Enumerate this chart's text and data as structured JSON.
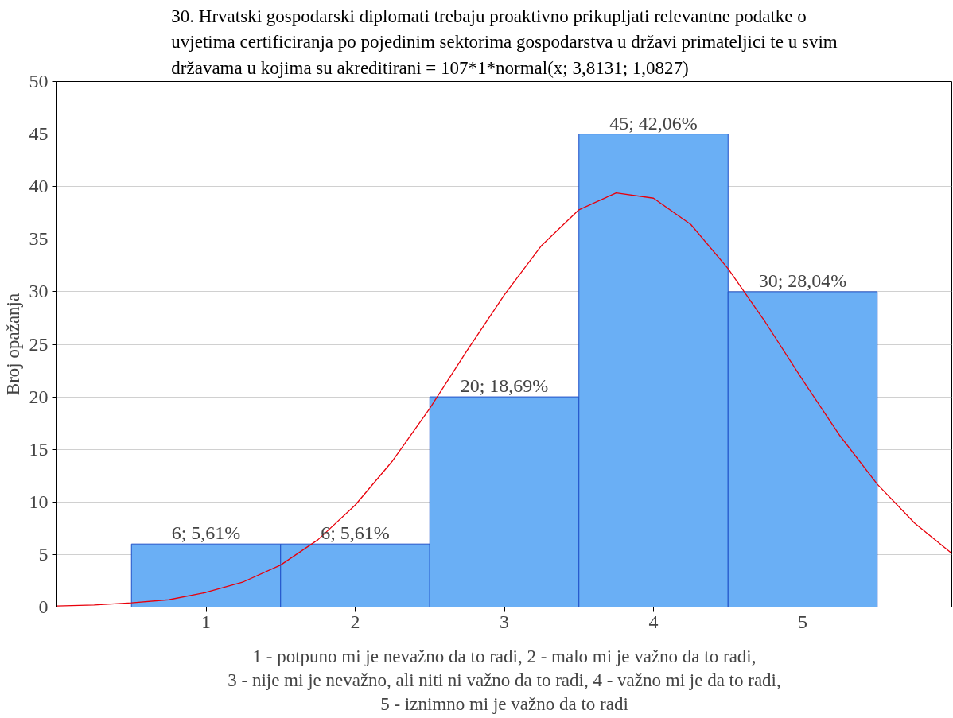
{
  "chart_data": {
    "type": "histogram",
    "title": "30. Hrvatski gospodarski diplomati trebaju proaktivno prikupljati relevantne podatke o\nuvjetima certificiranja po pojedinim sektorima gospodarstva u državi primateljici te u svim\ndržavama u kojima su akreditirani = 107*1*normal(x; 3,8131; 1,0827)",
    "xlabel": "1 - potpuno mi je nevažno da to radi, 2 - malo mi je važno da to radi,\n3 - nije mi je nevažno, ali niti ni važno da to radi, 4 - važno mi je da to radi,\n5 - iznimno mi je važno da to radi",
    "ylabel": "Broj opažanja",
    "bins": [
      0.5,
      1.5,
      2.5,
      3.5,
      4.5,
      5.5
    ],
    "values": [
      6,
      6,
      20,
      45,
      30
    ],
    "color": "#6aaff5",
    "value_labels": [
      "6; 5,61%",
      "6; 5,61%",
      "20; 18,69%",
      "45; 42,06%",
      "30; 28,04%"
    ],
    "series": [
      {
        "type": "line",
        "color": "#e8000b",
        "x": [
          0,
          0.25,
          0.5,
          0.75,
          1,
          1.25,
          1.5,
          1.75,
          2,
          2.25,
          2.5,
          2.75,
          3,
          3.25,
          3.5,
          3.75,
          4,
          4.25,
          4.5,
          4.75,
          5,
          5.25,
          5.5,
          5.75,
          6
        ],
        "values": [
          0.1,
          0.2,
          0.4,
          0.7,
          1.4,
          2.4,
          4.0,
          6.4,
          9.7,
          13.9,
          18.9,
          24.4,
          29.7,
          34.4,
          37.8,
          39.4,
          38.9,
          36.4,
          32.2,
          27.1,
          21.6,
          16.3,
          11.7,
          8.0,
          5.1
        ]
      }
    ],
    "xlim": [
      0,
      6
    ],
    "xticks": [
      1,
      2,
      3,
      4,
      5
    ],
    "ylim": [
      0,
      50
    ],
    "yticks": [
      0,
      5,
      10,
      15,
      20,
      25,
      30,
      35,
      40,
      45,
      50
    ],
    "grid": "y"
  }
}
